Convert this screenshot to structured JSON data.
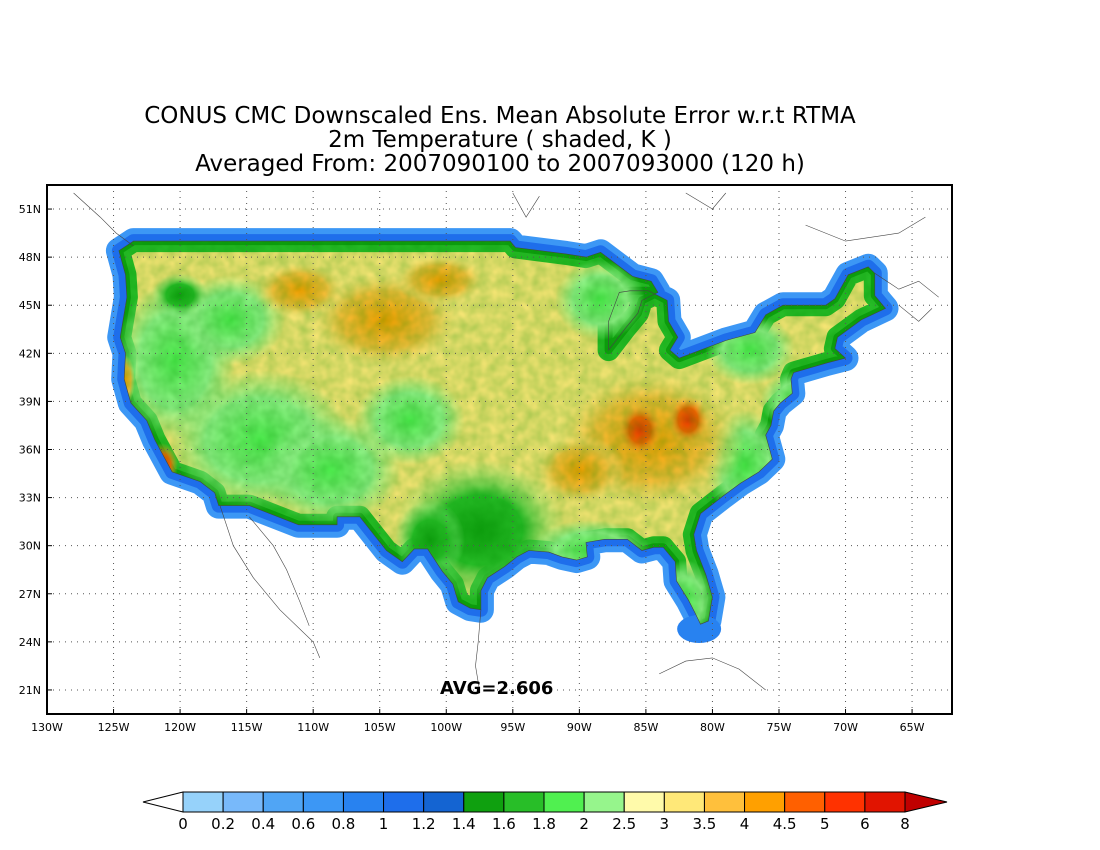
{
  "title": {
    "line1": "CONUS CMC Downscaled Ens. Mean Absolute Error w.r.t RTMA",
    "line2": "2m Temperature ( shaded, K )",
    "line3": "Averaged From: 2007090100 to 2007093000 (120 h)"
  },
  "map": {
    "lon_range": [
      -130,
      -62
    ],
    "lat_range": [
      19.5,
      52.5
    ],
    "lon_ticks": [
      {
        "value": -130,
        "label": "130W"
      },
      {
        "value": -125,
        "label": "125W"
      },
      {
        "value": -120,
        "label": "120W"
      },
      {
        "value": -115,
        "label": "115W"
      },
      {
        "value": -110,
        "label": "110W"
      },
      {
        "value": -105,
        "label": "105W"
      },
      {
        "value": -100,
        "label": "100W"
      },
      {
        "value": -95,
        "label": "95W"
      },
      {
        "value": -90,
        "label": "90W"
      },
      {
        "value": -85,
        "label": "85W"
      },
      {
        "value": -80,
        "label": "80W"
      },
      {
        "value": -75,
        "label": "75W"
      },
      {
        "value": -70,
        "label": "70W"
      },
      {
        "value": -65,
        "label": "65W"
      }
    ],
    "lat_ticks": [
      {
        "value": 21,
        "label": "21N"
      },
      {
        "value": 24,
        "label": "24N"
      },
      {
        "value": 27,
        "label": "27N"
      },
      {
        "value": 30,
        "label": "30N"
      },
      {
        "value": 33,
        "label": "33N"
      },
      {
        "value": 36,
        "label": "36N"
      },
      {
        "value": 39,
        "label": "39N"
      },
      {
        "value": 42,
        "label": "42N"
      },
      {
        "value": 45,
        "label": "45N"
      },
      {
        "value": 48,
        "label": "48N"
      },
      {
        "value": 51,
        "label": "51N"
      }
    ],
    "grid": true,
    "annotation": "AVG=2.606",
    "field_outline_lonlat": [
      [
        -124.6,
        48.4
      ],
      [
        -123.5,
        49.0
      ],
      [
        -95.2,
        49.0
      ],
      [
        -94.8,
        48.6
      ],
      [
        -91.0,
        48.2
      ],
      [
        -89.5,
        48.0
      ],
      [
        -88.4,
        48.3
      ],
      [
        -86.0,
        46.8
      ],
      [
        -84.6,
        46.5
      ],
      [
        -84.1,
        45.8
      ],
      [
        -85.3,
        45.3
      ],
      [
        -85.6,
        44.5
      ],
      [
        -86.5,
        43.6
      ],
      [
        -87.8,
        42.2
      ],
      [
        -87.8,
        44.0
      ],
      [
        -87.0,
        45.8
      ],
      [
        -86.2,
        45.9
      ],
      [
        -84.8,
        45.9
      ],
      [
        -83.4,
        45.3
      ],
      [
        -83.3,
        44.0
      ],
      [
        -82.6,
        43.0
      ],
      [
        -83.2,
        42.2
      ],
      [
        -82.5,
        41.7
      ],
      [
        -79.0,
        42.8
      ],
      [
        -76.8,
        43.3
      ],
      [
        -76.0,
        44.4
      ],
      [
        -74.7,
        45.0
      ],
      [
        -71.5,
        45.0
      ],
      [
        -70.8,
        45.4
      ],
      [
        -69.8,
        46.9
      ],
      [
        -68.3,
        47.4
      ],
      [
        -67.8,
        47.0
      ],
      [
        -67.8,
        45.6
      ],
      [
        -67.0,
        44.8
      ],
      [
        -68.8,
        44.1
      ],
      [
        -70.6,
        43.0
      ],
      [
        -70.8,
        42.3
      ],
      [
        -70.0,
        41.7
      ],
      [
        -71.4,
        41.4
      ],
      [
        -73.9,
        40.8
      ],
      [
        -74.1,
        40.4
      ],
      [
        -74.0,
        39.5
      ],
      [
        -74.9,
        38.9
      ],
      [
        -75.4,
        38.4
      ],
      [
        -75.6,
        37.5
      ],
      [
        -76.0,
        36.9
      ],
      [
        -75.5,
        35.4
      ],
      [
        -76.5,
        34.6
      ],
      [
        -77.9,
        33.9
      ],
      [
        -79.2,
        33.1
      ],
      [
        -80.9,
        32.0
      ],
      [
        -81.4,
        30.7
      ],
      [
        -81.2,
        29.7
      ],
      [
        -80.5,
        28.2
      ],
      [
        -80.0,
        26.8
      ],
      [
        -80.3,
        25.3
      ],
      [
        -80.9,
        25.1
      ],
      [
        -81.3,
        25.8
      ],
      [
        -81.8,
        26.6
      ],
      [
        -82.7,
        27.8
      ],
      [
        -82.8,
        29.0
      ],
      [
        -83.7,
        29.9
      ],
      [
        -84.4,
        29.9
      ],
      [
        -85.3,
        29.7
      ],
      [
        -86.4,
        30.4
      ],
      [
        -88.1,
        30.4
      ],
      [
        -89.5,
        30.2
      ],
      [
        -89.4,
        29.3
      ],
      [
        -90.2,
        29.1
      ],
      [
        -91.3,
        29.3
      ],
      [
        -92.3,
        29.6
      ],
      [
        -93.8,
        29.7
      ],
      [
        -94.7,
        29.3
      ],
      [
        -95.6,
        28.7
      ],
      [
        -96.9,
        28.0
      ],
      [
        -97.4,
        27.2
      ],
      [
        -97.4,
        26.0
      ],
      [
        -98.2,
        26.1
      ],
      [
        -99.1,
        26.5
      ],
      [
        -99.5,
        27.6
      ],
      [
        -100.3,
        28.4
      ],
      [
        -101.4,
        29.8
      ],
      [
        -102.4,
        29.8
      ],
      [
        -103.3,
        29.0
      ],
      [
        -104.5,
        29.7
      ],
      [
        -106.5,
        31.8
      ],
      [
        -108.2,
        31.8
      ],
      [
        -108.2,
        31.3
      ],
      [
        -111.1,
        31.3
      ],
      [
        -114.8,
        32.5
      ],
      [
        -117.1,
        32.5
      ],
      [
        -117.4,
        33.3
      ],
      [
        -118.5,
        34.0
      ],
      [
        -120.6,
        34.6
      ],
      [
        -121.9,
        36.6
      ],
      [
        -122.5,
        37.8
      ],
      [
        -123.7,
        38.9
      ],
      [
        -124.2,
        40.4
      ],
      [
        -124.1,
        42.0
      ],
      [
        -124.5,
        43.0
      ],
      [
        -124.0,
        45.5
      ],
      [
        -124.1,
        46.9
      ],
      [
        -124.6,
        48.4
      ]
    ]
  },
  "colorbar": {
    "labels": [
      "0",
      "0.2",
      "0.4",
      "0.6",
      "0.8",
      "1",
      "1.2",
      "1.4",
      "1.6",
      "1.8",
      "2",
      "2.5",
      "3",
      "3.5",
      "4",
      "4.5",
      "5",
      "6",
      "8"
    ],
    "colors": [
      "#ffffff",
      "#96d2fa",
      "#78b9fa",
      "#50a5f5",
      "#3c97f5",
      "#2882f0",
      "#1e6eeb",
      "#1464d2",
      "#0fa00f",
      "#28be28",
      "#50f050",
      "#96f58c",
      "#fffaaa",
      "#ffe878",
      "#ffc03c",
      "#ffa000",
      "#ff6000",
      "#ff3200",
      "#e11400",
      "#c00000"
    ]
  }
}
